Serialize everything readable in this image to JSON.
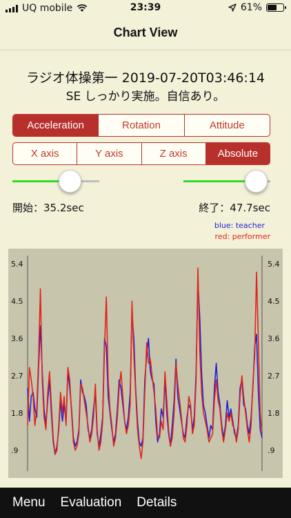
{
  "status_bar": {
    "carrier": "UQ mobile",
    "time": "23:39",
    "battery_percent": "61%",
    "battery_level": 0.61,
    "icons": [
      "signal-icon",
      "wifi-icon",
      "location-icon",
      "battery-icon"
    ]
  },
  "nav": {
    "title": "Chart View"
  },
  "session": {
    "title": "ラジオ体操第一 2019-07-20T03:46:14",
    "subtitle": "SE しっかり実施。自信あり。"
  },
  "mode_tabs": {
    "items": [
      "Acceleration",
      "Rotation",
      "Attitude"
    ],
    "selected": "Acceleration"
  },
  "axis_tabs": {
    "items": [
      "X axis",
      "Y axis",
      "Z axis",
      "Absolute"
    ],
    "selected": "Absolute"
  },
  "range": {
    "start_label": "開始：35.2sec",
    "end_label": "終了：47.7sec",
    "start_slider_fraction": 0.66,
    "end_slider_fraction": 0.84
  },
  "legend": {
    "blue": "blue: teacher",
    "red": "red: performer"
  },
  "colors": {
    "accent": "#b8302c",
    "teacher": "#1f1fd6",
    "performer": "#e0241a",
    "chart_bg": "#c8c5ad",
    "slider_active": "#2bdc27"
  },
  "chart_data": {
    "type": "line",
    "yticks": [
      ".9",
      "1.8",
      "2.7",
      "3.6",
      "4.5",
      "5.4"
    ],
    "yvalues": [
      0.9,
      1.8,
      2.7,
      3.6,
      4.5,
      5.4
    ],
    "ylim": [
      0.4,
      5.6
    ],
    "grid": false,
    "series": [
      {
        "name": "teacher",
        "color": "#1f1fd6",
        "values": [
          2.4,
          1.6,
          2.2,
          2.3,
          1.9,
          1.7,
          2.9,
          3.9,
          2.8,
          1.9,
          1.5,
          2.1,
          2.6,
          1.8,
          1.1,
          0.8,
          1.0,
          1.4,
          2.1,
          1.6,
          2.0,
          1.6,
          2.8,
          2.4,
          1.9,
          1.2,
          1.0,
          1.1,
          1.4,
          2.6,
          2.3,
          2.2,
          2.0,
          1.4,
          1.2,
          1.4,
          1.9,
          2.3,
          1.3,
          1.0,
          1.3,
          1.7,
          3.6,
          3.4,
          2.2,
          1.8,
          1.4,
          1.1,
          1.3,
          1.9,
          2.6,
          2.4,
          2.0,
          1.6,
          1.4,
          1.7,
          2.3,
          4.2,
          3.6,
          2.4,
          1.6,
          1.1,
          1.0,
          1.2,
          2.6,
          3.2,
          3.6,
          2.8,
          2.6,
          2.5,
          1.6,
          1.1,
          1.3,
          1.9,
          1.7,
          2.6,
          1.8,
          1.3,
          1.0,
          1.5,
          2.1,
          3.1,
          2.2,
          1.9,
          1.6,
          1.3,
          1.2,
          1.7,
          2.0,
          1.9,
          1.4,
          1.7,
          2.8,
          5.0,
          4.1,
          2.8,
          2.0,
          1.8,
          1.5,
          1.2,
          1.5,
          1.4,
          2.4,
          3.0,
          2.3,
          2.0,
          1.5,
          1.2,
          1.5,
          2.1,
          1.7,
          1.9,
          1.6,
          1.3,
          1.2,
          1.5,
          2.4,
          2.6,
          2.0,
          1.9,
          1.5,
          1.3,
          1.7,
          2.4,
          3.4,
          3.7,
          2.3,
          1.4,
          1.2
        ]
      },
      {
        "name": "performer",
        "color": "#e0241a",
        "values": [
          1.5,
          2.9,
          2.6,
          2.2,
          1.5,
          1.9,
          3.1,
          4.8,
          2.6,
          1.7,
          1.4,
          2.3,
          2.8,
          2.0,
          1.2,
          0.8,
          0.9,
          1.5,
          2.3,
          1.8,
          2.2,
          1.5,
          2.9,
          2.6,
          1.8,
          1.1,
          0.9,
          1.0,
          1.3,
          2.5,
          2.4,
          2.1,
          1.8,
          1.5,
          1.1,
          1.3,
          1.7,
          2.5,
          1.4,
          0.9,
          1.1,
          1.6,
          3.4,
          4.6,
          2.6,
          1.9,
          1.5,
          1.0,
          1.2,
          1.7,
          2.4,
          2.8,
          2.2,
          1.6,
          1.3,
          1.5,
          2.0,
          4.5,
          3.2,
          2.3,
          1.4,
          1.0,
          0.7,
          1.1,
          2.3,
          3.5,
          3.0,
          3.1,
          2.7,
          2.3,
          1.9,
          1.2,
          1.2,
          1.6,
          1.4,
          2.8,
          2.1,
          1.4,
          1.0,
          1.2,
          1.8,
          3.0,
          2.5,
          2.1,
          1.7,
          1.2,
          1.1,
          1.5,
          2.2,
          2.0,
          1.3,
          1.5,
          2.6,
          5.3,
          3.3,
          2.3,
          1.8,
          1.6,
          1.4,
          1.1,
          1.2,
          1.3,
          2.1,
          2.6,
          2.1,
          1.9,
          1.4,
          1.1,
          1.4,
          1.8,
          1.6,
          1.8,
          1.5,
          1.4,
          1.1,
          1.4,
          2.2,
          2.7,
          2.2,
          1.8,
          1.4,
          1.1,
          1.5,
          2.5,
          3.2,
          5.2,
          3.5,
          1.8,
          1.3
        ]
      }
    ]
  },
  "tab_bar": {
    "items": [
      "Menu",
      "Evaluation",
      "Details"
    ]
  }
}
